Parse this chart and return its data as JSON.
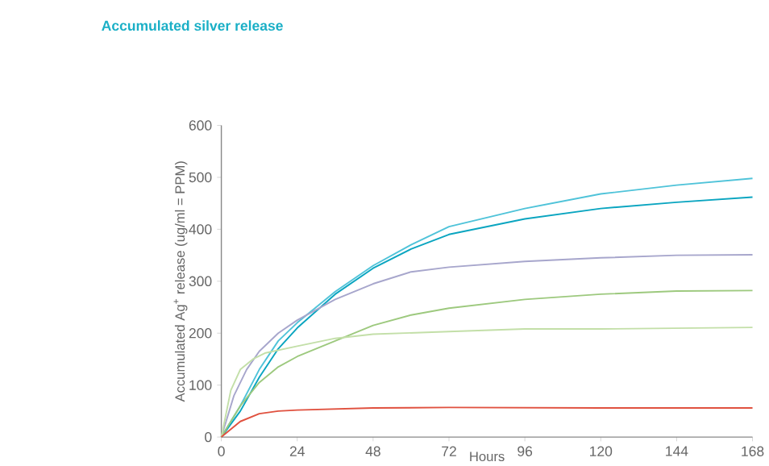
{
  "chart_data": {
    "type": "line",
    "title": "Accumulated silver release",
    "xlabel": "Hours",
    "ylabel": "Accumulated Ag$^{+}$ release (ug/ml = PPM)",
    "xlim": [
      0,
      168
    ],
    "ylim": [
      0,
      600
    ],
    "xticks": [
      0,
      24,
      48,
      72,
      96,
      120,
      144,
      168
    ],
    "yticks": [
      0,
      100,
      200,
      300,
      400,
      500,
      600
    ],
    "grid": false,
    "legend": false,
    "marker": "none",
    "line_style": "solid",
    "series": [
      {
        "color": "#4fc3d9",
        "x": [
          0,
          6,
          12,
          18,
          24,
          36,
          48,
          60,
          72,
          96,
          120,
          144,
          168
        ],
        "values": [
          0,
          60,
          130,
          185,
          220,
          280,
          330,
          370,
          405,
          440,
          468,
          485,
          498
        ]
      },
      {
        "color": "#0aa5c0",
        "x": [
          0,
          6,
          12,
          18,
          24,
          36,
          48,
          60,
          72,
          96,
          120,
          144,
          168
        ],
        "values": [
          0,
          50,
          115,
          170,
          210,
          275,
          325,
          362,
          390,
          420,
          440,
          452,
          462
        ]
      },
      {
        "color": "#a7a6cc",
        "x": [
          0,
          4,
          8,
          12,
          18,
          24,
          36,
          48,
          60,
          72,
          96,
          120,
          144,
          168
        ],
        "values": [
          0,
          80,
          130,
          165,
          200,
          225,
          265,
          295,
          318,
          327,
          338,
          345,
          350,
          351
        ]
      },
      {
        "color": "#9dc97e",
        "x": [
          0,
          6,
          12,
          18,
          24,
          36,
          48,
          60,
          72,
          96,
          120,
          144,
          168
        ],
        "values": [
          0,
          60,
          105,
          135,
          155,
          185,
          215,
          235,
          248,
          265,
          275,
          281,
          282
        ]
      },
      {
        "color": "#c3dfa8",
        "x": [
          0,
          3,
          6,
          10,
          14,
          24,
          36,
          48,
          72,
          96,
          120,
          168
        ],
        "values": [
          0,
          90,
          130,
          150,
          162,
          175,
          190,
          198,
          203,
          208,
          208,
          211
        ]
      },
      {
        "color": "#e0513f",
        "x": [
          0,
          6,
          12,
          18,
          24,
          48,
          72,
          120,
          168
        ],
        "values": [
          0,
          30,
          45,
          50,
          52,
          56,
          57,
          56,
          56
        ]
      }
    ]
  }
}
